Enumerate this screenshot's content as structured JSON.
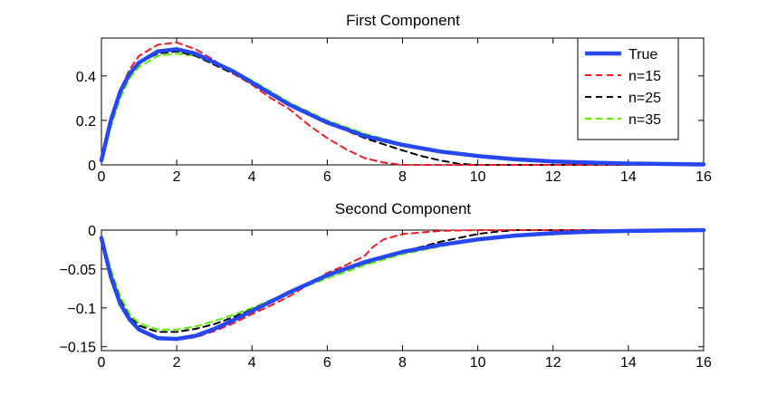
{
  "chart_data": [
    {
      "type": "line",
      "title": "First Component",
      "xlim": [
        0,
        16
      ],
      "ylim": [
        0,
        0.57
      ],
      "xticks": [
        "0",
        "2",
        "4",
        "6",
        "8",
        "10",
        "12",
        "14",
        "16"
      ],
      "yticks": [
        {
          "value": 0,
          "label": "0"
        },
        {
          "value": 0.2,
          "label": "0.2"
        },
        {
          "value": 0.4,
          "label": "0.4"
        }
      ],
      "legend": {
        "position": "top-right"
      },
      "grid": false,
      "series": [
        {
          "name": "True",
          "color": "#2747f2",
          "style": "solid",
          "x": [
            0,
            0.25,
            0.5,
            0.75,
            1,
            1.5,
            2,
            2.5,
            3,
            3.5,
            4,
            4.5,
            5,
            6,
            7,
            8,
            9,
            10,
            11,
            12,
            13,
            14,
            15,
            16
          ],
          "y": [
            0.02,
            0.2,
            0.33,
            0.41,
            0.46,
            0.51,
            0.52,
            0.5,
            0.46,
            0.42,
            0.37,
            0.32,
            0.27,
            0.19,
            0.13,
            0.09,
            0.06,
            0.04,
            0.025,
            0.015,
            0.01,
            0.006,
            0.004,
            0.002
          ]
        },
        {
          "name": "n=15",
          "color": "#ee1c24",
          "style": "dashed",
          "x": [
            0,
            0.25,
            0.5,
            0.75,
            1,
            1.5,
            2,
            2.5,
            3,
            3.5,
            4,
            4.5,
            5,
            5.5,
            6,
            6.5,
            7,
            7.5,
            8,
            8.5,
            9,
            10,
            16
          ],
          "y": [
            0.02,
            0.2,
            0.34,
            0.43,
            0.49,
            0.54,
            0.55,
            0.52,
            0.47,
            0.41,
            0.36,
            0.3,
            0.25,
            0.18,
            0.12,
            0.07,
            0.03,
            0.01,
            0.0,
            0.0,
            0.0,
            0.0,
            0.0
          ]
        },
        {
          "name": "n=25",
          "color": "#000000",
          "style": "dashed",
          "x": [
            0,
            0.25,
            0.5,
            0.75,
            1,
            1.5,
            2,
            2.5,
            3,
            3.5,
            4,
            4.5,
            5,
            6,
            7,
            8,
            8.5,
            9,
            9.5,
            10,
            11,
            16
          ],
          "y": [
            0.02,
            0.19,
            0.32,
            0.41,
            0.46,
            0.5,
            0.51,
            0.49,
            0.45,
            0.41,
            0.37,
            0.32,
            0.27,
            0.19,
            0.12,
            0.065,
            0.04,
            0.02,
            0.005,
            0.0,
            0.0,
            0.0
          ]
        },
        {
          "name": "n=35",
          "color": "#55ee00",
          "style": "dashed",
          "x": [
            0,
            0.25,
            0.5,
            0.75,
            1,
            1.5,
            2,
            2.5,
            3,
            3.5,
            4,
            4.5,
            5,
            6,
            7,
            8,
            9,
            10,
            11,
            12,
            13,
            14,
            15,
            16
          ],
          "y": [
            0.02,
            0.17,
            0.3,
            0.39,
            0.44,
            0.49,
            0.5,
            0.49,
            0.46,
            0.42,
            0.38,
            0.33,
            0.28,
            0.2,
            0.14,
            0.095,
            0.065,
            0.045,
            0.03,
            0.02,
            0.012,
            0.007,
            0.004,
            0.002
          ]
        }
      ]
    },
    {
      "type": "line",
      "title": "Second Component",
      "xlim": [
        0,
        16
      ],
      "ylim": [
        -0.155,
        0
      ],
      "xticks": [
        "0",
        "2",
        "4",
        "6",
        "8",
        "10",
        "12",
        "14",
        "16"
      ],
      "yticks": [
        {
          "value": 0,
          "label": "0"
        },
        {
          "value": -0.05,
          "label": "−0.05"
        },
        {
          "value": -0.1,
          "label": "−0.1"
        },
        {
          "value": -0.15,
          "label": "−0.15"
        }
      ],
      "grid": false,
      "series": [
        {
          "name": "True",
          "color": "#2747f2",
          "style": "solid",
          "x": [
            0,
            0.25,
            0.5,
            0.75,
            1,
            1.5,
            2,
            2.5,
            3,
            3.5,
            4,
            5,
            6,
            7,
            8,
            9,
            10,
            11,
            12,
            13,
            14,
            15,
            16
          ],
          "y": [
            -0.01,
            -0.06,
            -0.095,
            -0.115,
            -0.128,
            -0.139,
            -0.14,
            -0.136,
            -0.127,
            -0.116,
            -0.104,
            -0.08,
            -0.058,
            -0.041,
            -0.028,
            -0.019,
            -0.012,
            -0.007,
            -0.004,
            -0.002,
            -0.001,
            -0.0005,
            0
          ]
        },
        {
          "name": "n=15",
          "color": "#ee1c24",
          "style": "dashed",
          "x": [
            0,
            0.25,
            0.5,
            0.75,
            1,
            1.5,
            2,
            2.5,
            3,
            3.5,
            4,
            4.5,
            5,
            5.5,
            6,
            6.5,
            7,
            7.2,
            7.5,
            8,
            9,
            10,
            16
          ],
          "y": [
            -0.01,
            -0.06,
            -0.095,
            -0.117,
            -0.129,
            -0.139,
            -0.141,
            -0.138,
            -0.13,
            -0.12,
            -0.108,
            -0.097,
            -0.085,
            -0.07,
            -0.055,
            -0.045,
            -0.033,
            -0.022,
            -0.012,
            -0.005,
            -0.001,
            0,
            0
          ]
        },
        {
          "name": "n=25",
          "color": "#000000",
          "style": "dashed",
          "x": [
            0,
            0.25,
            0.5,
            0.75,
            1,
            1.5,
            2,
            2.5,
            3,
            3.5,
            4,
            5,
            6,
            7,
            8,
            9,
            10,
            10.5,
            11,
            16
          ],
          "y": [
            -0.01,
            -0.055,
            -0.09,
            -0.112,
            -0.123,
            -0.131,
            -0.131,
            -0.127,
            -0.121,
            -0.112,
            -0.102,
            -0.081,
            -0.057,
            -0.043,
            -0.028,
            -0.015,
            -0.005,
            -0.002,
            0,
            0
          ]
        },
        {
          "name": "n=35",
          "color": "#55ee00",
          "style": "dashed",
          "x": [
            0,
            0.25,
            0.5,
            0.75,
            1,
            1.5,
            2,
            2.5,
            3,
            3.5,
            4,
            5,
            6,
            7,
            8,
            9,
            10,
            11,
            12,
            13,
            14,
            15,
            16
          ],
          "y": [
            -0.01,
            -0.05,
            -0.085,
            -0.108,
            -0.12,
            -0.128,
            -0.128,
            -0.124,
            -0.117,
            -0.109,
            -0.1,
            -0.08,
            -0.062,
            -0.045,
            -0.031,
            -0.021,
            -0.013,
            -0.008,
            -0.005,
            -0.003,
            -0.0015,
            -0.0005,
            0
          ]
        }
      ]
    }
  ]
}
